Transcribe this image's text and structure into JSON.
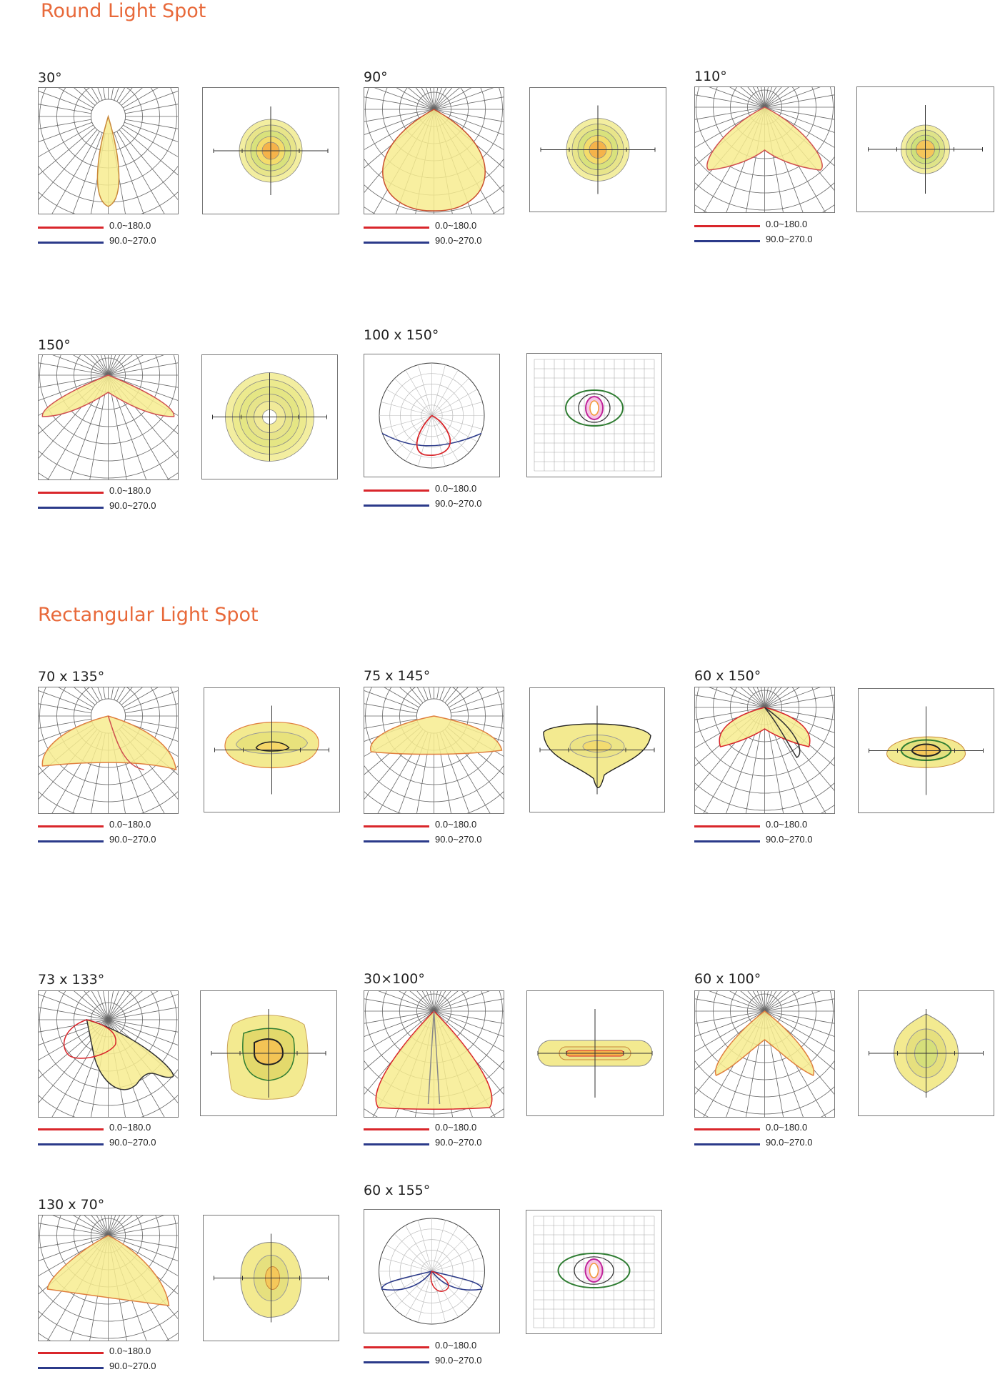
{
  "sections": [
    {
      "title": "Round Light Spot"
    },
    {
      "title": "Rectangular Light Spot"
    }
  ],
  "legend": {
    "c0_label": "0.0~180.0",
    "c90_label": "90.0~270.0",
    "c0_color": "#d9262b",
    "c90_color": "#2b3a8a"
  },
  "colors": {
    "fill": "#f7ec8f",
    "orange": "#f29a3a",
    "grid": "#666666",
    "green": "#2f7d32",
    "magenta": "#c0259a"
  },
  "charts": [
    {
      "label": "30°",
      "polar": "narrow",
      "iso": "round"
    },
    {
      "label": "90°",
      "polar": "bulb",
      "iso": "round"
    },
    {
      "label": "110°",
      "polar": "wide",
      "iso": "round-small"
    },
    {
      "label": "150°",
      "polar": "flat",
      "iso": "round-large"
    },
    {
      "label": "100 x 150°",
      "polar": "circle-polar",
      "iso": "grid-ellipse"
    },
    {
      "label": "70 x 135°",
      "polar": "asym",
      "iso": "blob"
    },
    {
      "label": "75 x 145°",
      "polar": "asym2",
      "iso": "blob-tail"
    },
    {
      "label": "60 x 150°",
      "polar": "butterfly",
      "iso": "blob-small"
    },
    {
      "label": "73 x 133°",
      "polar": "side",
      "iso": "square-blob"
    },
    {
      "label": "30×100°",
      "polar": "cone",
      "iso": "bar"
    },
    {
      "label": "60 x 100°",
      "polar": "vee",
      "iso": "star"
    },
    {
      "label": "130 x 70°",
      "polar": "asym3",
      "iso": "blob-tall"
    },
    {
      "label": "60 x 155°",
      "polar": "circle-polar2",
      "iso": "grid-ellipse2"
    }
  ]
}
